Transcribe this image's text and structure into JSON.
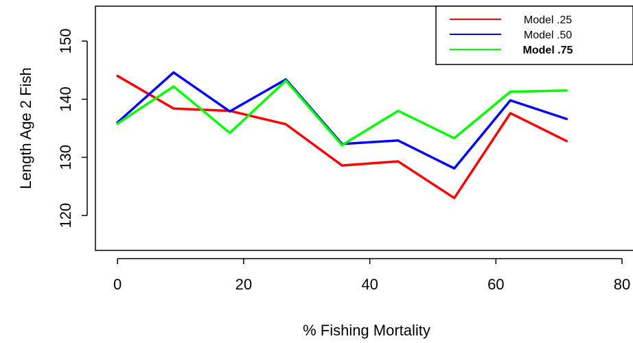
{
  "chart_data": {
    "type": "line",
    "title": "",
    "xlabel": "% Fishing Mortality",
    "ylabel": "Length Age 2 Fish",
    "xlim": [
      -3.5,
      82.5
    ],
    "ylim": [
      114,
      156
    ],
    "x_ticks": [
      0,
      20,
      40,
      60,
      80
    ],
    "y_ticks": [
      120,
      130,
      140,
      150
    ],
    "x": [
      0,
      8.9,
      17.8,
      26.7,
      35.6,
      44.5,
      53.4,
      62.3,
      71.2
    ],
    "series": [
      {
        "name": "Model .25",
        "color": "#ff0000",
        "values": [
          144.0,
          138.4,
          138.0,
          135.7,
          128.6,
          129.3,
          123.0,
          137.6,
          132.8
        ]
      },
      {
        "name": "Model .50",
        "color": "#0000ff",
        "values": [
          136.0,
          144.6,
          137.9,
          143.4,
          132.3,
          132.9,
          128.1,
          139.8,
          136.6
        ]
      },
      {
        "name": "Model .75",
        "color": "#00ff00",
        "values": [
          135.8,
          142.2,
          134.2,
          143.2,
          132.1,
          138.0,
          133.3,
          141.3,
          141.5
        ]
      }
    ],
    "legend": {
      "position": "top-right",
      "bold_entry": "Model .75"
    },
    "grid": false
  }
}
